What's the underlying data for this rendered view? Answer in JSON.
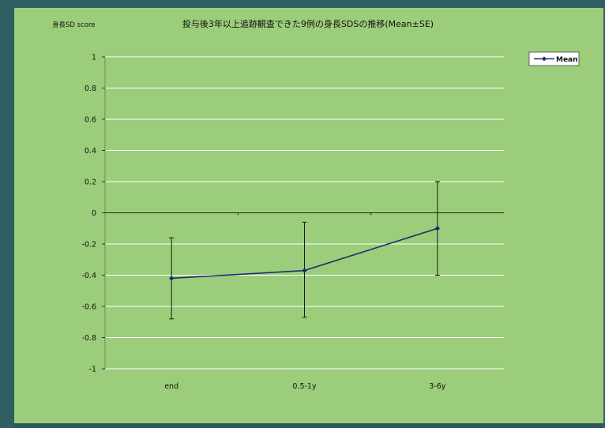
{
  "chart_data": {
    "type": "line",
    "title": "投与後3年以上追跡観査できた9例の身長SDSの推移(Mean±SE)",
    "ylabel": "身長SD score",
    "xlabel": "",
    "categories": [
      "end",
      "0.5-1y",
      "3-6y"
    ],
    "ylim": [
      -1,
      1
    ],
    "yticks": [
      1,
      0.8,
      0.6,
      0.4,
      0.2,
      0,
      -0.2,
      -0.4,
      -0.6,
      -0.8,
      -1
    ],
    "ytick_labels": [
      "1",
      "0.8",
      "0.6",
      "0.4",
      "0.2",
      "0",
      "-0.2",
      "-0.4",
      "-0.6",
      "-0.8",
      "-1"
    ],
    "grid": true,
    "legend_position": "top-right",
    "series": [
      {
        "name": "Mean",
        "values": [
          -0.42,
          -0.37,
          -0.1
        ],
        "error_low": [
          -0.68,
          -0.67,
          -0.4
        ],
        "error_high": [
          -0.16,
          -0.06,
          0.2
        ]
      }
    ],
    "colors": {
      "background": "#9ccd7a",
      "gridline": "#ffffff",
      "series": "#1b2f6e",
      "errorbar": "#1a1a1a",
      "frame": "#2f5f63"
    }
  }
}
